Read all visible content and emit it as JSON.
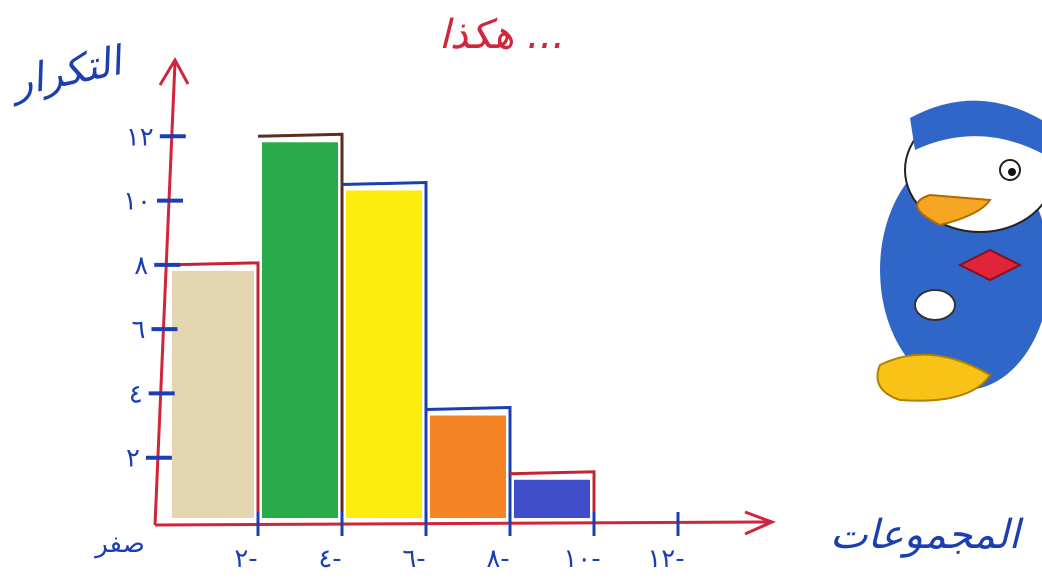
{
  "header": {
    "title": "... هكذا"
  },
  "chart_data": {
    "type": "bar",
    "title": "... هكذا",
    "xlabel": "المجموعات",
    "ylabel": "التكرار",
    "categories": [
      "صفر-٢",
      "٢-٤",
      "٤-٦",
      "٦-٨",
      "٨-١٠"
    ],
    "values": [
      8,
      12,
      10.5,
      3.5,
      1.5
    ],
    "x_ticks": [
      "صفر",
      "٢-",
      "٤-",
      "٦-",
      "٨-",
      "١٠-",
      "١٢-"
    ],
    "y_ticks": [
      "٢",
      "٤",
      "٦",
      "٨",
      "١٠",
      "١٢"
    ],
    "ylim": [
      0,
      14
    ],
    "grid": false,
    "legend": "none",
    "bar_colors": [
      "#e3d6b0",
      "#2aab49",
      "#fbec0b",
      "#f58426",
      "#3f4ec8"
    ],
    "outline_colors": [
      "#c42533",
      "#5a2f1e",
      "#1b3fb0",
      "#1b3fb0",
      "#c42533"
    ],
    "axis_color": "#d0253a"
  },
  "decorations": {
    "character_icon": "duck-character-icon"
  }
}
